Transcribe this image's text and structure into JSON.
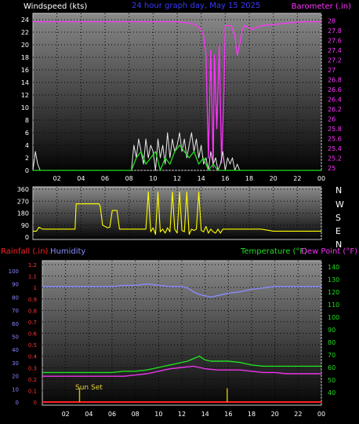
{
  "colors": {
    "wind": "#e8e8e8",
    "gust": "#22dd22",
    "barometer": "#ff33ff",
    "direction": "#ffff00",
    "rain": "#ff2222",
    "humidity": "#8a8aff",
    "temperature": "#22dd22",
    "dewpoint": "#ee33ee",
    "sunset": "#ccbb00",
    "bg_top": "#888888",
    "bg_bottom": "#000000"
  },
  "chart_data": [
    {
      "type": "line",
      "title": "24 hour graph day,  May 15 2025",
      "y_left_label": "Windspeed (kts)",
      "y_right_label": "Barometer (.in)",
      "x_ticks": [
        "02",
        "04",
        "06",
        "08",
        "10",
        "12",
        "14",
        "16",
        "18",
        "20",
        "22",
        "00"
      ],
      "y_left_ticks": [
        "0",
        "2",
        "4",
        "6",
        "8",
        "10",
        "12",
        "14",
        "16",
        "18",
        "20",
        "22",
        "24"
      ],
      "y_right_ticks": [
        "25",
        "25.2",
        "25.4",
        "25.6",
        "25.8",
        "26",
        "26.2",
        "26.4",
        "26.6",
        "26.8",
        "27",
        "27.2",
        "27.4",
        "27.6",
        "27.8",
        "28"
      ],
      "ylim_left": [
        0,
        25
      ],
      "ylim_right": [
        24.95,
        28.15
      ],
      "xlim": [
        0,
        24
      ],
      "series": [
        {
          "key": "barometer",
          "axis": "right",
          "x": [
            0,
            1,
            2,
            3,
            4,
            5,
            6,
            7,
            8,
            9,
            10,
            11,
            12,
            13,
            13.5,
            13.9,
            14.2,
            14.4,
            14.6,
            14.8,
            15.0,
            15.1,
            15.3,
            15.5,
            15.7,
            15.9,
            16.0,
            16.2,
            16.5,
            16.8,
            17.0,
            17.2,
            17.4,
            17.6,
            17.8,
            18.0,
            18.3,
            18.6,
            19,
            20,
            21,
            22,
            23,
            24
          ],
          "y": [
            27.98,
            27.98,
            27.98,
            27.98,
            27.98,
            27.98,
            27.98,
            27.98,
            27.98,
            27.98,
            27.98,
            27.98,
            27.98,
            27.95,
            27.92,
            27.85,
            27.7,
            27.3,
            25.2,
            27.4,
            25.0,
            27.3,
            25.8,
            27.5,
            25.1,
            26.6,
            27.9,
            27.9,
            27.9,
            27.7,
            27.3,
            27.5,
            27.8,
            27.9,
            27.88,
            27.85,
            27.82,
            27.86,
            27.9,
            27.92,
            27.95,
            27.97,
            27.98,
            27.98
          ]
        },
        {
          "key": "wind",
          "axis": "left",
          "x": [
            0,
            0.2,
            0.4,
            0.6,
            8.2,
            8.4,
            8.6,
            8.8,
            9.0,
            9.2,
            9.4,
            9.6,
            9.8,
            10.0,
            10.2,
            10.4,
            10.6,
            10.8,
            11.0,
            11.2,
            11.4,
            11.6,
            11.8,
            12.0,
            12.2,
            12.4,
            12.6,
            12.8,
            13.0,
            13.2,
            13.4,
            13.6,
            13.8,
            14.0,
            14.2,
            14.4,
            14.6,
            14.8,
            15.0,
            15.2,
            15.4,
            15.6,
            15.8,
            16.0,
            16.2,
            16.4,
            16.6,
            16.8,
            17.0,
            17.2,
            24
          ],
          "y": [
            0,
            3,
            1,
            0,
            0,
            4,
            2,
            5,
            3,
            1,
            5,
            2,
            4,
            3,
            0,
            5,
            2,
            4,
            1,
            6,
            2,
            5,
            3,
            4,
            6,
            3,
            5,
            2,
            4,
            6,
            3,
            5,
            2,
            4,
            1,
            2,
            0,
            3,
            1,
            2,
            0,
            1,
            3,
            0,
            2,
            1,
            2,
            0,
            1,
            0,
            0
          ]
        },
        {
          "key": "gust",
          "axis": "left",
          "x": [
            0,
            8.2,
            8.6,
            9.0,
            9.4,
            9.8,
            10.2,
            10.6,
            11.0,
            11.4,
            11.8,
            12.2,
            12.6,
            13.0,
            13.4,
            13.8,
            14.2,
            14.6,
            15.0,
            15.4,
            15.8,
            16.2,
            16.6,
            17.0,
            24
          ],
          "y": [
            0,
            0,
            2,
            3,
            1,
            2,
            3,
            0,
            2,
            1,
            3,
            4,
            3,
            2,
            3,
            1,
            2,
            0,
            1,
            0,
            0,
            0,
            0,
            0,
            0
          ]
        }
      ]
    },
    {
      "type": "line",
      "title": "",
      "y_left_ticks": [
        "0",
        "90",
        "180",
        "270",
        "360"
      ],
      "y_right_ticks": [
        "N",
        "W",
        "S",
        "E",
        "N"
      ],
      "ylim": [
        0,
        360
      ],
      "xlim": [
        0,
        24
      ],
      "series": [
        {
          "key": "direction",
          "x": [
            0,
            0.3,
            0.5,
            0.8,
            1.2,
            2,
            3,
            3.5,
            3.6,
            4,
            5,
            5.5,
            5.6,
            5.8,
            6.0,
            6.2,
            6.4,
            6.6,
            6.8,
            7.0,
            7.2,
            7.4,
            7.6,
            7.8,
            8.0,
            8.2,
            8.4,
            8.6,
            8.8,
            9.0,
            9.2,
            9.4,
            9.6,
            9.8,
            10.0,
            10.2,
            10.4,
            10.6,
            10.8,
            11.0,
            11.2,
            11.4,
            11.6,
            11.8,
            12.0,
            12.2,
            12.4,
            12.6,
            12.8,
            13.0,
            13.2,
            13.4,
            13.6,
            13.8,
            14.0,
            14.2,
            14.4,
            14.6,
            14.8,
            15.0,
            15.2,
            15.4,
            15.6,
            15.8,
            16.0,
            16.2,
            16.5,
            17.0,
            18,
            19,
            20,
            21,
            22,
            23,
            24
          ],
          "y": [
            45,
            45,
            75,
            60,
            60,
            60,
            60,
            60,
            250,
            250,
            250,
            250,
            230,
            90,
            80,
            70,
            75,
            200,
            200,
            200,
            60,
            60,
            60,
            60,
            60,
            60,
            60,
            60,
            60,
            60,
            60,
            60,
            340,
            40,
            70,
            20,
            340,
            40,
            60,
            30,
            70,
            40,
            340,
            60,
            30,
            340,
            50,
            40,
            340,
            20,
            60,
            50,
            60,
            340,
            50,
            40,
            80,
            30,
            60,
            40,
            30,
            60,
            30,
            60,
            60,
            60,
            60,
            60,
            60,
            60,
            45,
            45,
            45,
            45,
            45
          ]
        }
      ]
    },
    {
      "type": "line",
      "title": "",
      "y_left_label_rain": "Rainfall (.in)",
      "y_left_label_hum": "Humidity",
      "y_right_label_temp": "Temperature (°F)",
      "y_right_label_dew": "Dew Point (°F)",
      "annotation": "Sun Set",
      "x_ticks": [
        "02",
        "04",
        "06",
        "08",
        "10",
        "12",
        "14",
        "16",
        "18",
        "20",
        "22",
        "00"
      ],
      "y_rain_ticks": [
        "0",
        "0.1",
        "0.2",
        "0.3",
        "0.4",
        "0.5",
        "0.6",
        "0.7",
        "0.8",
        "0.9",
        "1",
        "1.1",
        "1.2"
      ],
      "y_hum_ticks": [
        "0",
        "10",
        "20",
        "30",
        "40",
        "50",
        "60",
        "70",
        "80",
        "90",
        "100"
      ],
      "y_temp_ticks": [
        "40",
        "50",
        "60",
        "70",
        "80",
        "90",
        "100",
        "110",
        "120",
        "130",
        "140"
      ],
      "ylim_humidity": [
        0,
        100
      ],
      "ylim_temp": [
        30,
        145
      ],
      "xlim": [
        0,
        24
      ],
      "series": [
        {
          "key": "humidity",
          "x": [
            0,
            2,
            4,
            6,
            7,
            8,
            9,
            10,
            11,
            12,
            12.5,
            13,
            13.5,
            14,
            14.5,
            15,
            15.5,
            16,
            17,
            18,
            19,
            20,
            21,
            22,
            23,
            24
          ],
          "y": [
            88,
            88,
            88,
            88,
            89,
            89,
            90,
            89,
            88,
            88,
            87,
            84,
            82,
            81,
            80,
            81,
            82,
            83,
            84,
            86,
            87,
            88,
            88,
            88,
            88,
            88
          ]
        },
        {
          "key": "temperature",
          "x": [
            0,
            2,
            4,
            6,
            7,
            8,
            9,
            10,
            11,
            12,
            12.5,
            13,
            13.5,
            14,
            14.5,
            15,
            16,
            17,
            18,
            19,
            20,
            21,
            22,
            23,
            24
          ],
          "y": [
            56,
            56,
            56,
            56,
            57,
            57,
            58,
            60,
            62,
            64,
            65,
            67,
            69,
            66,
            65,
            65,
            65,
            64,
            62,
            61,
            61,
            61,
            61,
            61,
            61
          ]
        },
        {
          "key": "dewpoint",
          "x": [
            0,
            2,
            4,
            6,
            7,
            8,
            9,
            10,
            11,
            12,
            13,
            13.5,
            14,
            15,
            16,
            17,
            18,
            19,
            20,
            21,
            22,
            23,
            24
          ],
          "y": [
            53,
            53,
            53,
            53,
            53,
            54,
            55,
            57,
            59,
            60,
            61,
            60,
            59,
            58,
            58,
            58,
            57,
            56,
            56,
            55,
            55,
            55,
            55
          ]
        },
        {
          "key": "rain",
          "x": [
            0,
            24
          ],
          "y": [
            0,
            0
          ]
        }
      ],
      "markers": [
        {
          "key": "sunset",
          "x": 3.2,
          "height": 0.12
        },
        {
          "key": "sunset",
          "x": 15.9,
          "height": 0.12
        }
      ]
    }
  ]
}
